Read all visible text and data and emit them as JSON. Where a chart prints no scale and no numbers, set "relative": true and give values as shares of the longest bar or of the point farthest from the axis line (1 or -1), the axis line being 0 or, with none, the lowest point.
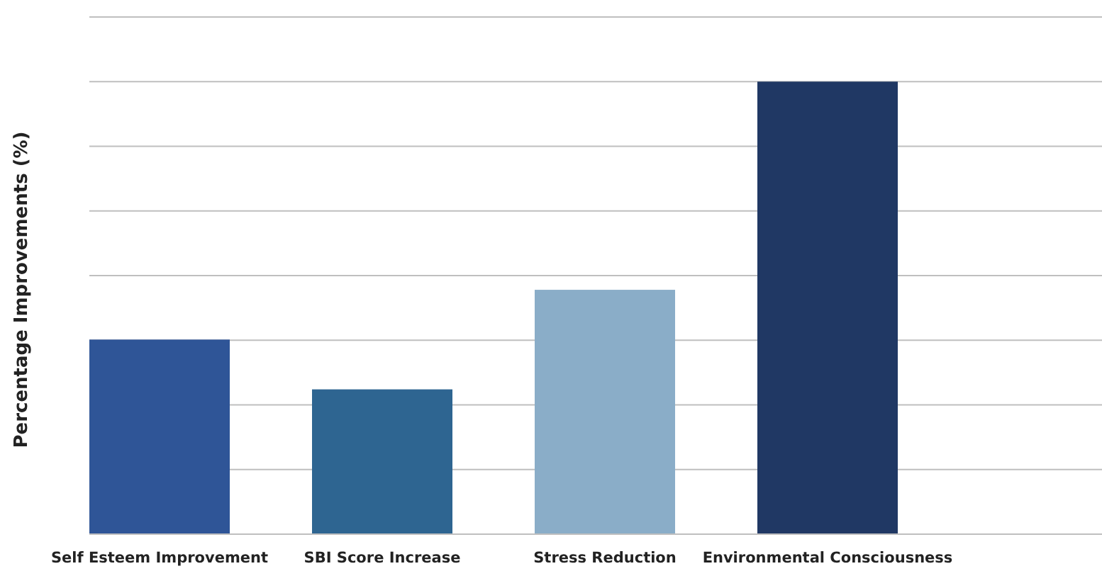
{
  "chart_data": {
    "type": "bar",
    "relative": true,
    "ylabel": "Percentage Improvements (%)",
    "categories": [
      "Self Esteem Improvement",
      "SBI Score Increase",
      "Stress Reduction",
      "Environmental Consciousness"
    ],
    "values": [
      0.43,
      0.32,
      0.54,
      1
    ],
    "colors": [
      "#2f5597",
      "#2e6591",
      "#8aadc8",
      "#203864"
    ],
    "grid": "y"
  }
}
